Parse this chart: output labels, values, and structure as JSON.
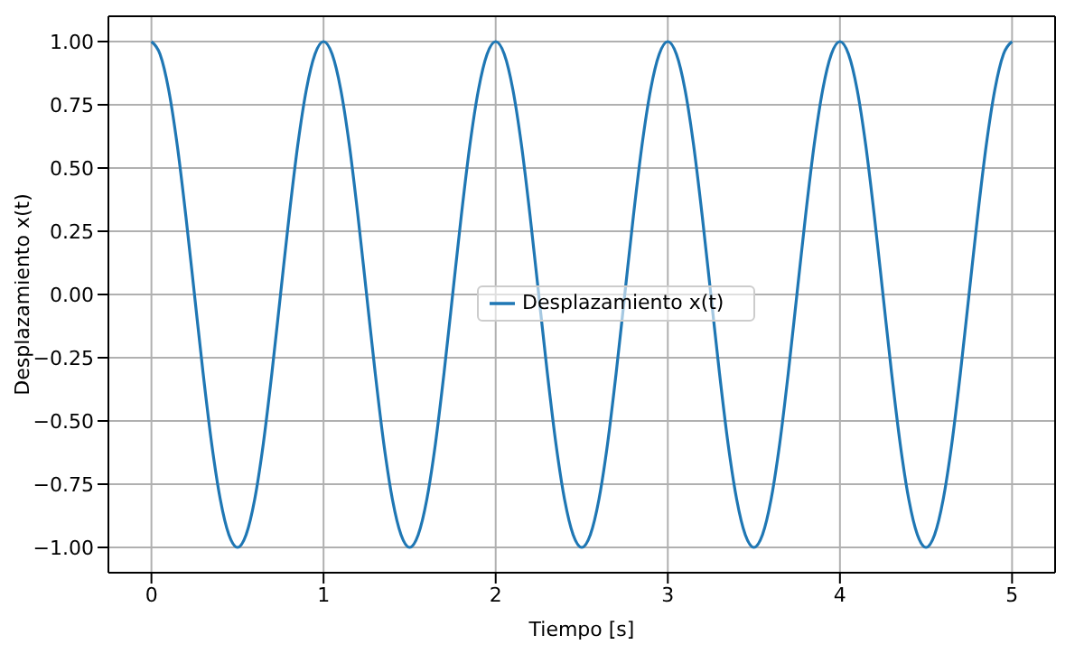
{
  "chart_data": {
    "type": "line",
    "xlabel": "Tiempo [s]",
    "ylabel": "Desplazamiento x(t)",
    "x": [
      0,
      0.05,
      0.1,
      0.15,
      0.2,
      0.25,
      0.3,
      0.35,
      0.4,
      0.45,
      0.5,
      0.55,
      0.6,
      0.65,
      0.7,
      0.75,
      0.8,
      0.85,
      0.9,
      0.95,
      1,
      1.05,
      1.1,
      1.15,
      1.2,
      1.25,
      1.3,
      1.35,
      1.4,
      1.45,
      1.5,
      1.55,
      1.6,
      1.65,
      1.7,
      1.75,
      1.8,
      1.85,
      1.9,
      1.95,
      2,
      2.05,
      2.1,
      2.15,
      2.2,
      2.25,
      2.3,
      2.35,
      2.4,
      2.45,
      2.5,
      2.55,
      2.6,
      2.65,
      2.7,
      2.75,
      2.8,
      2.85,
      2.9,
      2.95,
      3,
      3.05,
      3.1,
      3.15,
      3.2,
      3.25,
      3.3,
      3.35,
      3.4,
      3.45,
      3.5,
      3.55,
      3.6,
      3.65,
      3.7,
      3.75,
      3.8,
      3.85,
      3.9,
      3.95,
      4,
      4.05,
      4.1,
      4.15,
      4.2,
      4.25,
      4.3,
      4.35,
      4.4,
      4.45,
      4.5,
      4.55,
      4.6,
      4.65,
      4.7,
      4.75,
      4.8,
      4.85,
      4.9,
      4.95,
      5
    ],
    "series": [
      {
        "name": "Desplazamiento x(t)",
        "color": "#1f77b4",
        "values": [
          1,
          0.95,
          0.81,
          0.59,
          0.31,
          0,
          -0.31,
          -0.59,
          -0.81,
          -0.95,
          -1,
          -0.95,
          -0.81,
          -0.59,
          -0.31,
          0,
          0.31,
          0.59,
          0.81,
          0.95,
          1,
          0.95,
          0.81,
          0.59,
          0.31,
          0,
          -0.31,
          -0.59,
          -0.81,
          -0.95,
          -1,
          -0.95,
          -0.81,
          -0.59,
          -0.31,
          0,
          0.31,
          0.59,
          0.81,
          0.95,
          1,
          0.95,
          0.81,
          0.59,
          0.31,
          0,
          -0.31,
          -0.59,
          -0.81,
          -0.95,
          -1,
          -0.95,
          -0.81,
          -0.59,
          -0.31,
          0,
          0.31,
          0.59,
          0.81,
          0.95,
          1,
          0.95,
          0.81,
          0.59,
          0.31,
          0,
          -0.31,
          -0.59,
          -0.81,
          -0.95,
          -1,
          -0.95,
          -0.81,
          -0.59,
          -0.31,
          0,
          0.31,
          0.59,
          0.81,
          0.95,
          1,
          0.95,
          0.81,
          0.59,
          0.31,
          0,
          -0.31,
          -0.59,
          -0.81,
          -0.95,
          -1,
          -0.95,
          -0.81,
          -0.59,
          -0.31,
          0,
          0.31,
          0.59,
          0.81,
          0.95,
          1
        ]
      }
    ],
    "xlim": [
      -0.25,
      5.25
    ],
    "xticks": [
      0,
      1,
      2,
      3,
      4,
      5
    ],
    "ylim": [
      -1.1,
      1.1
    ],
    "yticks": [
      {
        "value": -1,
        "label": "−1.00"
      },
      {
        "value": -0.75,
        "label": "−0.75"
      },
      {
        "value": -0.5,
        "label": "−0.50"
      },
      {
        "value": -0.25,
        "label": "−0.25"
      },
      {
        "value": 0,
        "label": "0.00"
      },
      {
        "value": 0.25,
        "label": "0.25"
      },
      {
        "value": 0.5,
        "label": "0.50"
      },
      {
        "value": 0.75,
        "label": "0.75"
      },
      {
        "value": 1,
        "label": "1.00"
      }
    ],
    "grid": true,
    "legend": "center",
    "marker": "none",
    "line_style": "solid"
  }
}
